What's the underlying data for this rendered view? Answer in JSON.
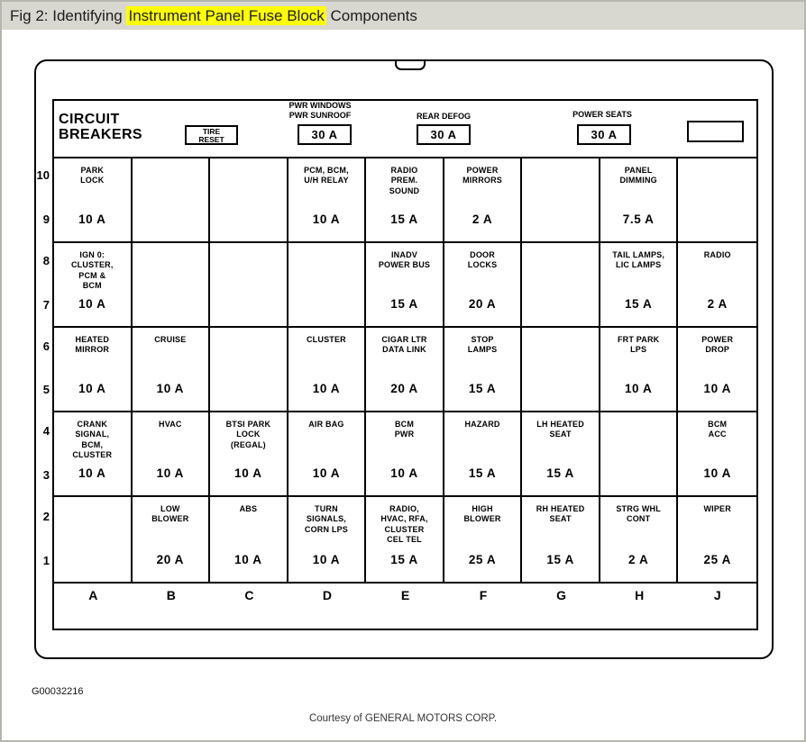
{
  "title": {
    "prefix": "Fig 2: Identifying ",
    "highlight": "Instrument Panel Fuse Block",
    "suffix": " Components"
  },
  "colors": {
    "title_bar": "#d8d7d0",
    "highlight": "#ffff00",
    "line": "#000000"
  },
  "header": {
    "circuit_breakers": "CIRCUIT\nBREAKERS",
    "tire_reset": "TIRE\nRESET",
    "breakers": [
      {
        "label": "PWR WINDOWS\nPWR SUNROOF",
        "amp": "30 A"
      },
      {
        "label": "REAR DEFOG",
        "amp": "30 A"
      },
      {
        "label": "POWER SEATS",
        "amp": "30 A"
      }
    ]
  },
  "grid": {
    "row_numbers": [
      [
        "10",
        "9"
      ],
      [
        "8",
        "7"
      ],
      [
        "6",
        "5"
      ],
      [
        "4",
        "3"
      ],
      [
        "2",
        "1"
      ]
    ],
    "column_letters": [
      "A",
      "B",
      "C",
      "D",
      "E",
      "F",
      "G",
      "H",
      "J"
    ],
    "bands": [
      [
        {
          "label": "PARK\nLOCK",
          "amp": "10 A"
        },
        {
          "label": "",
          "amp": ""
        },
        {
          "label": "",
          "amp": ""
        },
        {
          "label": "PCM, BCM,\nU/H RELAY",
          "amp": "10 A"
        },
        {
          "label": "RADIO\nPREM.\nSOUND",
          "amp": "15 A"
        },
        {
          "label": "POWER\nMIRRORS",
          "amp": "2 A"
        },
        {
          "label": "",
          "amp": ""
        },
        {
          "label": "PANEL\nDIMMING",
          "amp": "7.5 A"
        },
        {
          "label": "",
          "amp": ""
        }
      ],
      [
        {
          "label": "IGN 0:\nCLUSTER,\nPCM &\nBCM",
          "amp": "10 A"
        },
        {
          "label": "",
          "amp": ""
        },
        {
          "label": "",
          "amp": ""
        },
        {
          "label": "",
          "amp": ""
        },
        {
          "label": "INADV\nPOWER BUS",
          "amp": "15 A"
        },
        {
          "label": "DOOR\nLOCKS",
          "amp": "20 A"
        },
        {
          "label": "",
          "amp": ""
        },
        {
          "label": "TAIL LAMPS,\nLIC LAMPS",
          "amp": "15 A"
        },
        {
          "label": "RADIO",
          "amp": "2 A"
        }
      ],
      [
        {
          "label": "HEATED\nMIRROR",
          "amp": "10 A"
        },
        {
          "label": "CRUISE",
          "amp": "10 A"
        },
        {
          "label": "",
          "amp": ""
        },
        {
          "label": "CLUSTER",
          "amp": "10 A"
        },
        {
          "label": "CIGAR LTR\nDATA LINK",
          "amp": "20 A"
        },
        {
          "label": "STOP\nLAMPS",
          "amp": "15 A"
        },
        {
          "label": "",
          "amp": ""
        },
        {
          "label": "FRT PARK\nLPS",
          "amp": "10 A"
        },
        {
          "label": "POWER\nDROP",
          "amp": "10 A"
        }
      ],
      [
        {
          "label": "CRANK\nSIGNAL,\nBCM,\nCLUSTER",
          "amp": "10 A"
        },
        {
          "label": "HVAC",
          "amp": "10 A"
        },
        {
          "label": "BTSI PARK\nLOCK\n(REGAL)",
          "amp": "10 A"
        },
        {
          "label": "AIR BAG",
          "amp": "10 A"
        },
        {
          "label": "BCM\nPWR",
          "amp": "10 A"
        },
        {
          "label": "HAZARD",
          "amp": "15 A"
        },
        {
          "label": "LH HEATED\nSEAT",
          "amp": "15 A"
        },
        {
          "label": "",
          "amp": ""
        },
        {
          "label": "BCM\nACC",
          "amp": "10 A"
        }
      ],
      [
        {
          "label": "",
          "amp": ""
        },
        {
          "label": "LOW\nBLOWER",
          "amp": "20 A"
        },
        {
          "label": "ABS",
          "amp": "10 A"
        },
        {
          "label": "TURN\nSIGNALS,\nCORN LPS",
          "amp": "10 A"
        },
        {
          "label": "RADIO,\nHVAC, RFA,\nCLUSTER\nCEL TEL",
          "amp": "15 A"
        },
        {
          "label": "HIGH\nBLOWER",
          "amp": "25 A"
        },
        {
          "label": "RH HEATED\nSEAT",
          "amp": "15 A"
        },
        {
          "label": "STRG WHL\nCONT",
          "amp": "2 A"
        },
        {
          "label": "WIPER",
          "amp": "25 A"
        }
      ]
    ]
  },
  "footer": {
    "code": "G00032216",
    "courtesy": "Courtesy of GENERAL MOTORS CORP."
  }
}
